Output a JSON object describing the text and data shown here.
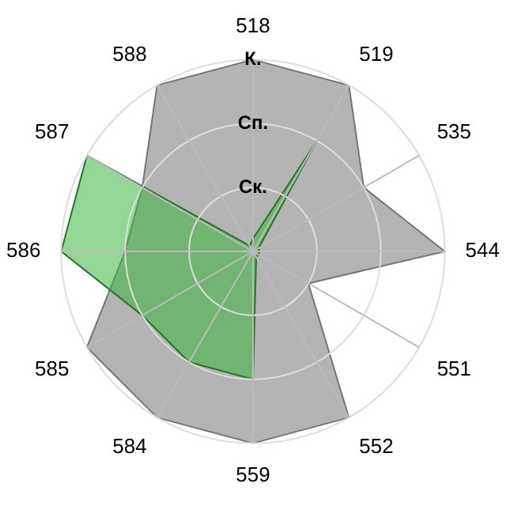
{
  "chart_data": {
    "type": "radar",
    "categories": [
      "518",
      "519",
      "535",
      "544",
      "551",
      "552",
      "559",
      "584",
      "585",
      "586",
      "587",
      "588"
    ],
    "series": [
      {
        "color": "#b4b4b4",
        "values": [
          3,
          3,
          2,
          3,
          1,
          3,
          3,
          3,
          3,
          2,
          2,
          3
        ]
      },
      {
        "color": "#3cb43c",
        "values": [
          0.2,
          2,
          0.1,
          0.1,
          0.1,
          0.1,
          2,
          2,
          2,
          3,
          3,
          0.1
        ]
      }
    ],
    "ylim": [
      0,
      3
    ],
    "yticks": [
      {
        "value": 1,
        "label": "Ск."
      },
      {
        "value": 2,
        "label": "Сп."
      },
      {
        "value": 3,
        "label": "К."
      }
    ],
    "grid": true,
    "legend": false
  }
}
